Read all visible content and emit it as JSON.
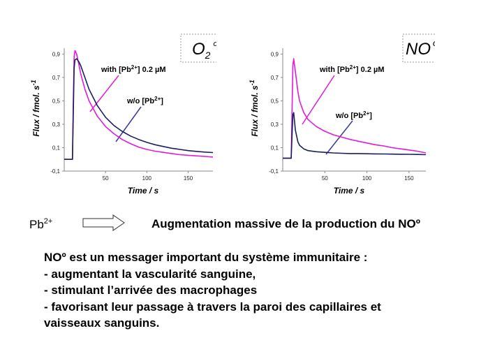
{
  "charts": {
    "left": {
      "title_main": "O",
      "title_sub": "2",
      "title_sup": "o"
    },
    "right": {
      "title_main": "NO",
      "title_sup": "o"
    },
    "ylabel": "Flux / fmol. s",
    "ylabel_sup": "-1",
    "xlabel": "Time / s",
    "ion_prefix": "[Pb",
    "ion_charge": "2+",
    "ion_suffix": "]",
    "label_with_lead": "with ",
    "label_with_conc": " 0.2 µM",
    "label_without_lead": "w/o "
  },
  "chart_data": [
    {
      "type": "line",
      "title": "O2°",
      "xlabel": "Time / s",
      "ylabel": "Flux / fmol. s-1",
      "xlim": [
        0,
        180
      ],
      "ylim": [
        -0.1,
        0.95
      ],
      "x_ticks": [
        "50",
        "100",
        "150"
      ],
      "y_ticks": [
        "-0,1",
        "0,1",
        "0,3",
        "0,5",
        "0,7",
        "0,9"
      ],
      "series": [
        {
          "name": "with [Pb2+] 0.2 µM",
          "color": "#e21ad9",
          "x": [
            0,
            10,
            11,
            12,
            13,
            15,
            18,
            20,
            25,
            30,
            40,
            50,
            60,
            70,
            80,
            90,
            100,
            110,
            120,
            130,
            140,
            150,
            160,
            170,
            180
          ],
          "y": [
            0,
            0,
            0.5,
            0.88,
            0.93,
            0.9,
            0.8,
            0.73,
            0.6,
            0.5,
            0.37,
            0.28,
            0.22,
            0.17,
            0.135,
            0.105,
            0.085,
            0.07,
            0.06,
            0.05,
            0.04,
            0.035,
            0.03,
            0.025,
            0.02
          ]
        },
        {
          "name": "w/o [Pb2+]",
          "color": "#1a1f5c",
          "x": [
            0,
            10,
            11,
            12,
            13,
            15,
            18,
            20,
            25,
            30,
            40,
            50,
            60,
            70,
            80,
            90,
            100,
            110,
            120,
            130,
            140,
            150,
            160,
            170,
            180
          ],
          "y": [
            0,
            0,
            0.4,
            0.78,
            0.85,
            0.86,
            0.83,
            0.8,
            0.7,
            0.6,
            0.46,
            0.36,
            0.29,
            0.24,
            0.2,
            0.17,
            0.145,
            0.125,
            0.11,
            0.095,
            0.085,
            0.075,
            0.068,
            0.062,
            0.058
          ]
        }
      ]
    },
    {
      "type": "line",
      "title": "NO°",
      "xlabel": "Time / s",
      "ylabel": "Flux / fmol. s-1",
      "xlim": [
        0,
        170
      ],
      "ylim": [
        -0.1,
        0.95
      ],
      "x_ticks": [
        "50",
        "100",
        "150"
      ],
      "y_ticks": [
        "-0,1",
        "0,1",
        "0,3",
        "0,5",
        "0,7",
        "0,9"
      ],
      "series": [
        {
          "name": "with [Pb2+] 0.2 µM",
          "color": "#e21ad9",
          "x": [
            0,
            10,
            11,
            12,
            13,
            15,
            18,
            20,
            25,
            30,
            40,
            50,
            60,
            70,
            80,
            90,
            100,
            110,
            120,
            130,
            140,
            150,
            160,
            170
          ],
          "y": [
            0.01,
            0.01,
            0.4,
            0.8,
            0.86,
            0.75,
            0.58,
            0.5,
            0.4,
            0.34,
            0.28,
            0.24,
            0.21,
            0.19,
            0.17,
            0.155,
            0.14,
            0.125,
            0.115,
            0.1,
            0.09,
            0.08,
            0.07,
            0.055
          ]
        },
        {
          "name": "w/o [Pb2+]",
          "color": "#1a1f5c",
          "x": [
            0,
            10,
            11,
            12,
            13,
            15,
            18,
            20,
            25,
            30,
            40,
            50,
            60,
            70,
            80,
            90,
            100,
            110,
            120,
            130,
            140,
            150,
            160,
            170
          ],
          "y": [
            0.01,
            0.01,
            0.2,
            0.38,
            0.4,
            0.25,
            0.15,
            0.12,
            0.09,
            0.075,
            0.065,
            0.06,
            0.055,
            0.052,
            0.05,
            0.05,
            0.048,
            0.047,
            0.046,
            0.045,
            0.044,
            0.043,
            0.042,
            0.04
          ]
        }
      ]
    }
  ],
  "arrow_row": {
    "lead": "Pb",
    "lead_sup": "2+",
    "caption": "Augmentation massive de la production du NOº"
  },
  "text_block": {
    "lines": [
      "NOº est un messager important du système immunitaire :",
      "- augmentant la vascularité sanguine,",
      "- stimulant l’arrivée des macrophages",
      "- favorisant leur passage à travers la paroi des capillaires et",
      "vaisseaux sanguins."
    ]
  }
}
